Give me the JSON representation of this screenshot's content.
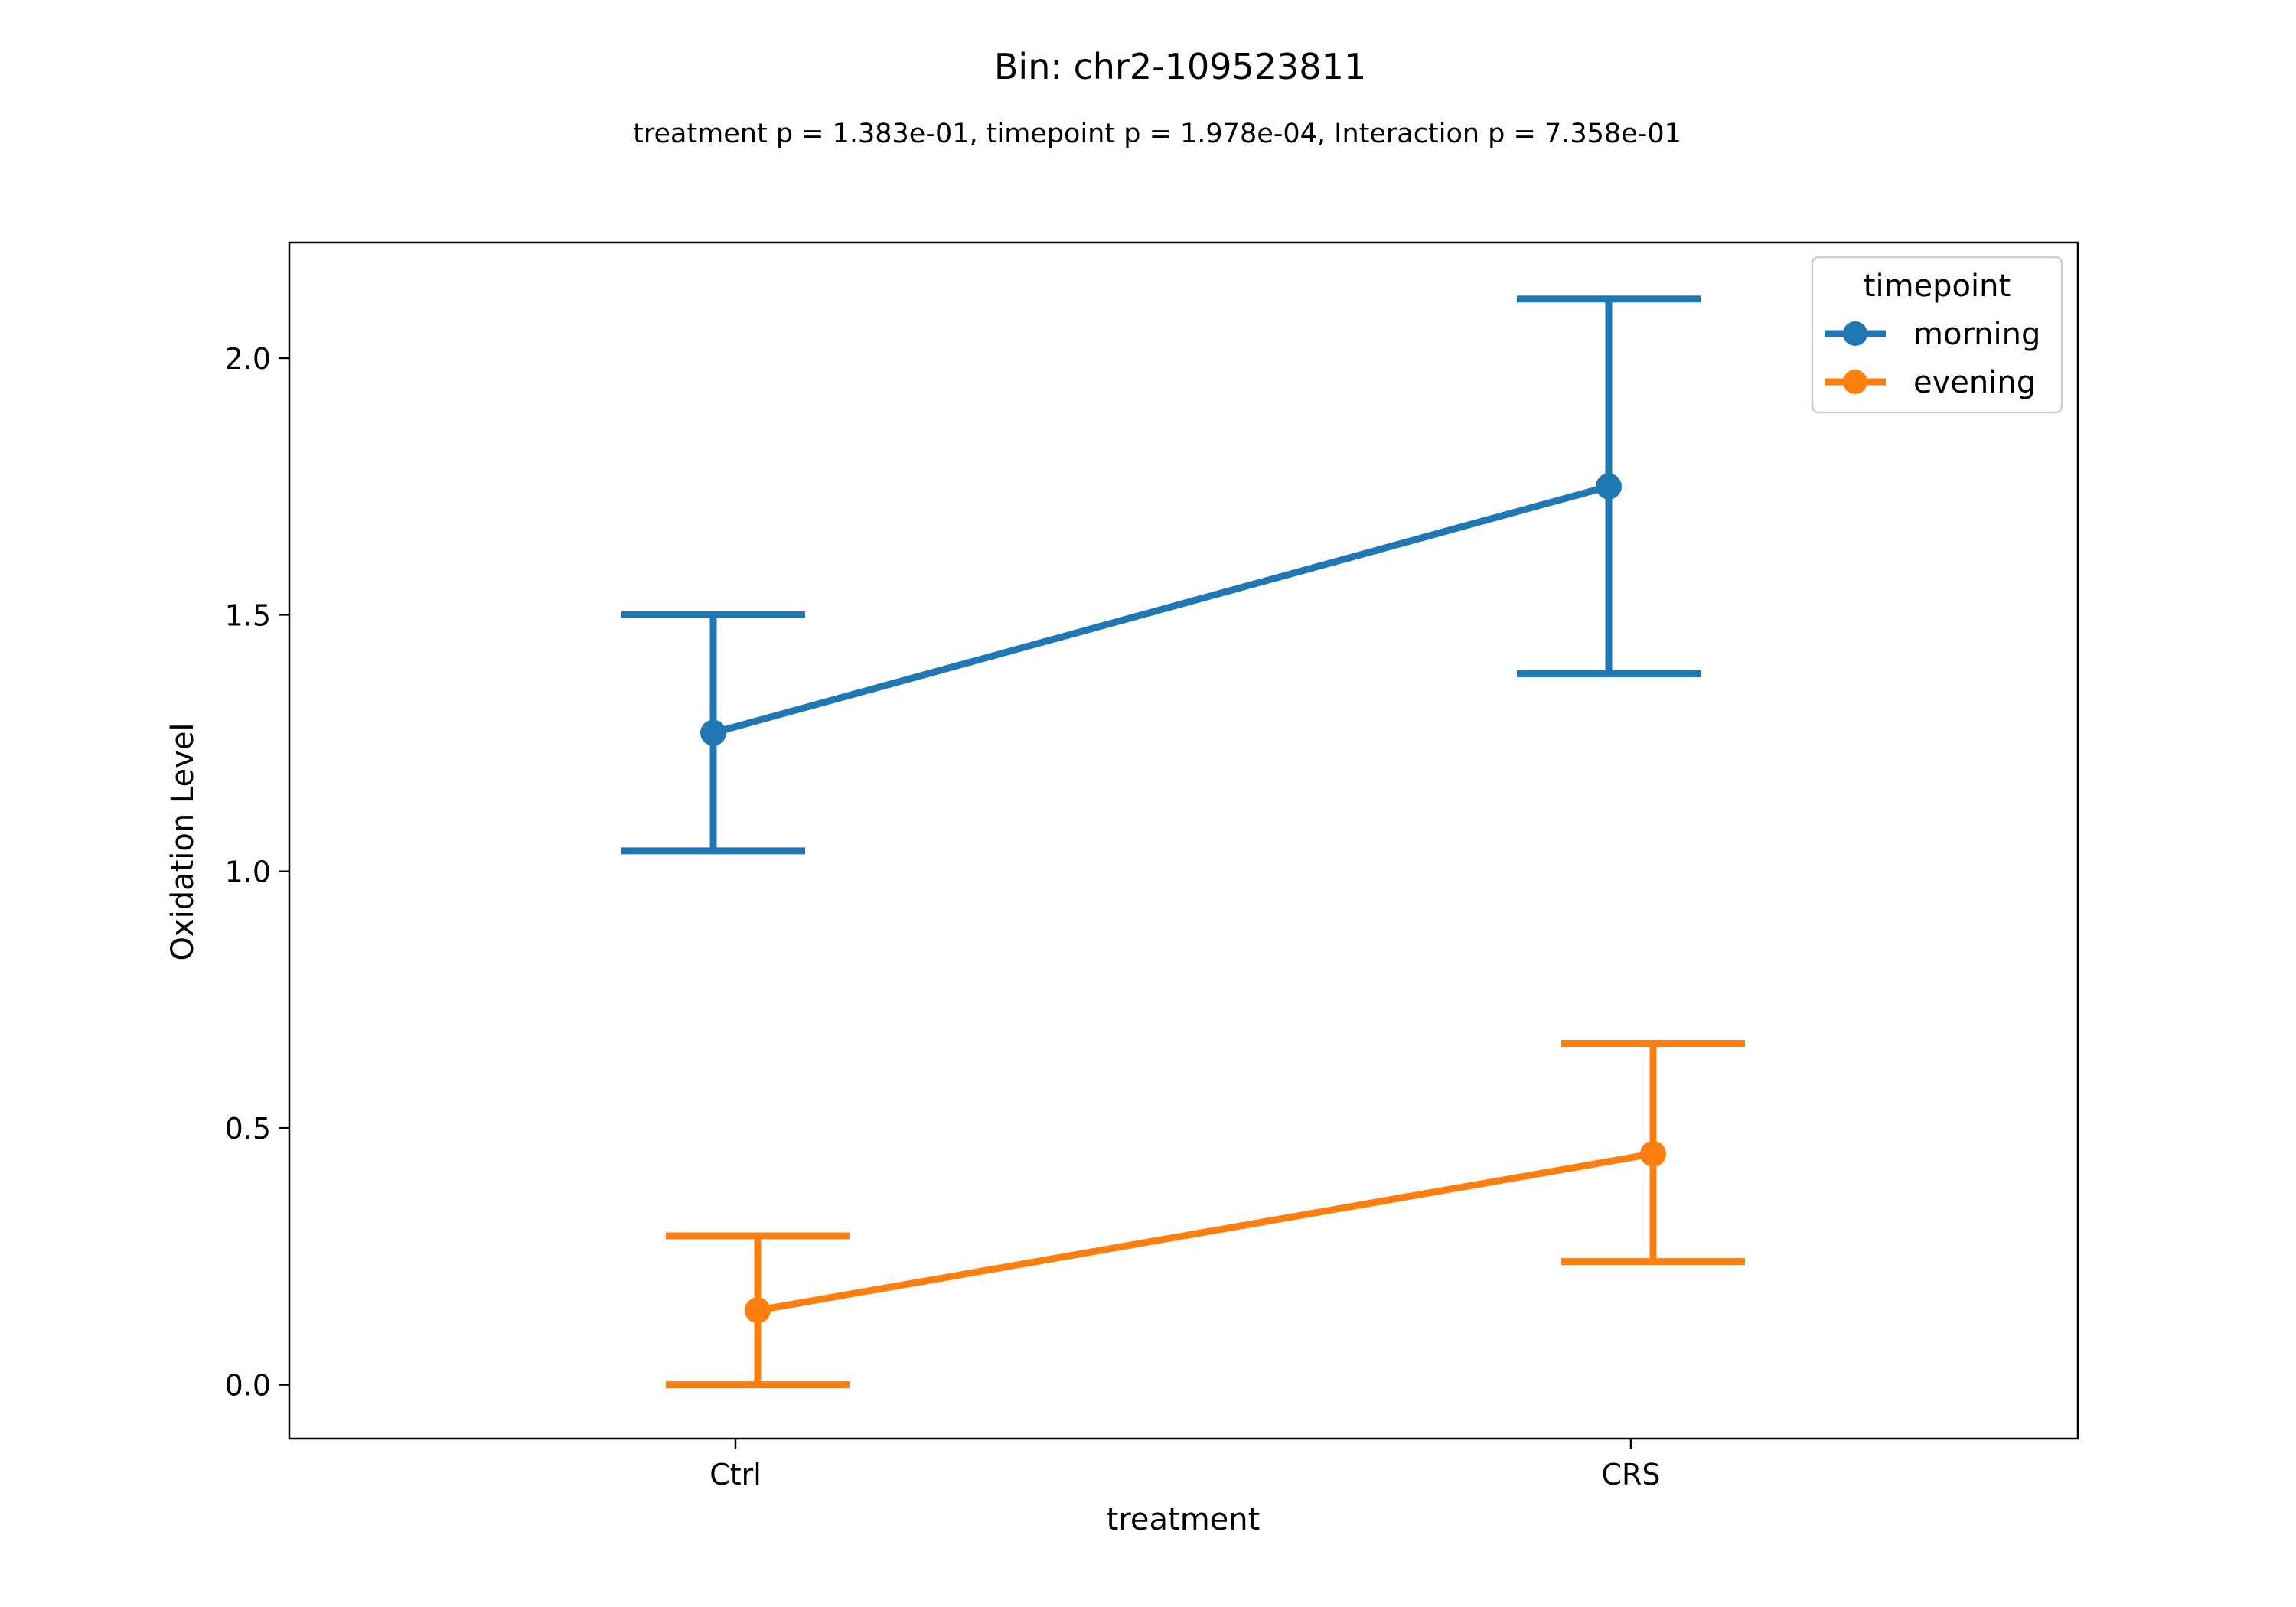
{
  "chart_data": {
    "type": "line",
    "title": "Bin: chr2-109523811",
    "subtitle": "treatment p = 1.383e-01, timepoint p = 1.978e-04, Interaction p = 7.358e-01",
    "xlabel": "treatment",
    "ylabel": "Oxidation Level",
    "categories": [
      "Ctrl",
      "CRS"
    ],
    "ylim": [
      -0.105,
      2.225
    ],
    "yticks": [
      0.0,
      0.5,
      1.0,
      1.5,
      2.0
    ],
    "ytick_labels": [
      "0.0",
      "0.5",
      "1.0",
      "1.5",
      "2.0"
    ],
    "grid": false,
    "legend": {
      "title": "timepoint",
      "placement": "top-right"
    },
    "series": [
      {
        "name": "morning",
        "color": "#1f77b4",
        "values": [
          1.27,
          1.75
        ],
        "ci_low": [
          1.04,
          1.385
        ],
        "ci_high": [
          1.5,
          2.115
        ]
      },
      {
        "name": "evening",
        "color": "#ff7f0e",
        "values": [
          0.145,
          0.45
        ],
        "ci_low": [
          0.0,
          0.24
        ],
        "ci_high": [
          0.29,
          0.665
        ]
      }
    ]
  }
}
